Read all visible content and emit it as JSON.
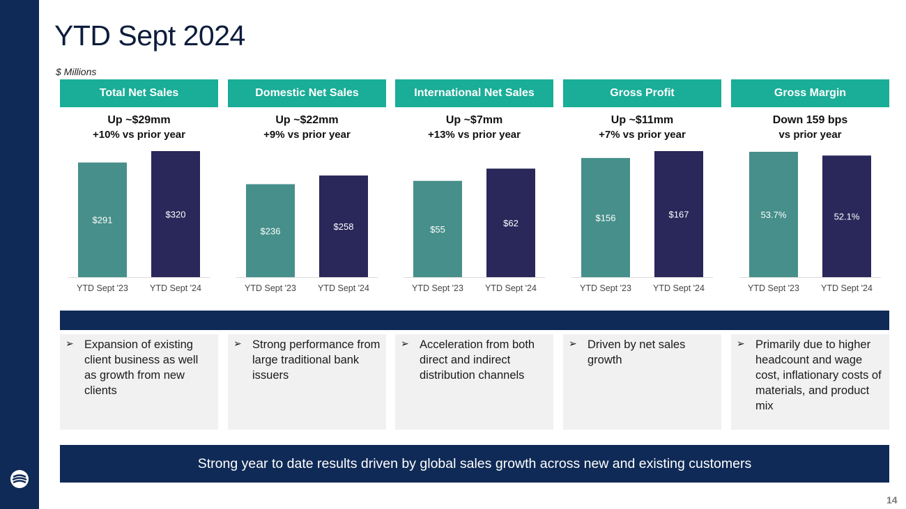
{
  "title": "YTD Sept 2024",
  "units": "$ Millions",
  "colors": {
    "prior": "#468f8a",
    "current": "#2a275a",
    "header": "#1aad97",
    "navy": "#0f2a56"
  },
  "chart_data": [
    {
      "type": "bar",
      "title": "Total Net Sales",
      "categories": [
        "YTD Sept '23",
        "YTD Sept '24"
      ],
      "values": [
        291,
        320
      ],
      "labels": [
        "$291",
        "$320"
      ],
      "ylim": [
        0,
        320
      ]
    },
    {
      "type": "bar",
      "title": "Domestic Net Sales",
      "categories": [
        "YTD Sept '23",
        "YTD Sept '24"
      ],
      "values": [
        236,
        258
      ],
      "labels": [
        "$236",
        "$258"
      ],
      "ylim": [
        0,
        320
      ]
    },
    {
      "type": "bar",
      "title": "International Net Sales",
      "categories": [
        "YTD Sept '23",
        "YTD Sept '24"
      ],
      "values": [
        55,
        62
      ],
      "labels": [
        "$55",
        "$62"
      ],
      "ylim": [
        0,
        72
      ]
    },
    {
      "type": "bar",
      "title": "Gross Profit",
      "categories": [
        "YTD Sept '23",
        "YTD Sept '24"
      ],
      "values": [
        156,
        167
      ],
      "labels": [
        "$156",
        "$167"
      ],
      "ylim": [
        0,
        165
      ]
    },
    {
      "type": "bar",
      "title": "Gross Margin",
      "categories": [
        "YTD Sept '23",
        "YTD Sept '24"
      ],
      "values": [
        53.7,
        52.1
      ],
      "labels": [
        "53.7%",
        "52.1%"
      ],
      "ylim": [
        0,
        54
      ]
    }
  ],
  "panels": [
    {
      "header": "Total Net Sales",
      "line1": "Up ~$29mm",
      "line2": "+10% vs prior year",
      "bullet": "Expansion of existing client business as well as growth from new clients"
    },
    {
      "header": "Domestic Net Sales",
      "line1": "Up ~$22mm",
      "line2": "+9% vs prior year",
      "bullet": "Strong performance from large traditional bank issuers"
    },
    {
      "header": "International Net Sales",
      "line1": "Up ~$7mm",
      "line2": "+13% vs prior year",
      "bullet": "Acceleration from both direct and indirect distribution channels"
    },
    {
      "header": "Gross Profit",
      "line1": "Up ~$11mm",
      "line2": "+7% vs prior year",
      "bullet": "Driven by net sales growth"
    },
    {
      "header": "Gross Margin",
      "line1": "Down 159 bps",
      "line2": "vs prior year",
      "bullet": "Primarily due to higher headcount and wage cost, inflationary costs of materials, and product mix"
    }
  ],
  "bullet_marker": "➢",
  "footer": "Strong year to date results driven by global sales growth across new and existing customers",
  "page_number": "14"
}
